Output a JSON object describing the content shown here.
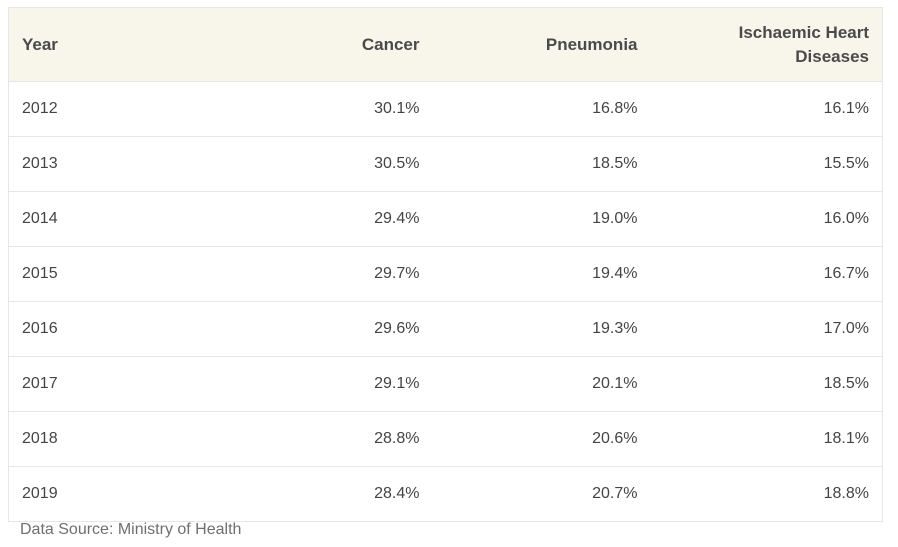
{
  "chart_data": {
    "type": "table",
    "columns": [
      "Year",
      "Cancer",
      "Pneumonia",
      "Ischaemic Heart Diseases"
    ],
    "rows": [
      [
        "2012",
        "30.1%",
        "16.8%",
        "16.1%"
      ],
      [
        "2013",
        "30.5%",
        "18.5%",
        "15.5%"
      ],
      [
        "2014",
        "29.4%",
        "19.0%",
        "16.0%"
      ],
      [
        "2015",
        "29.7%",
        "19.4%",
        "16.7%"
      ],
      [
        "2016",
        "29.6%",
        "19.3%",
        "17.0%"
      ],
      [
        "2017",
        "29.1%",
        "20.1%",
        "18.5%"
      ],
      [
        "2018",
        "28.8%",
        "20.6%",
        "18.1%"
      ],
      [
        "2019",
        "28.4%",
        "20.7%",
        "18.8%"
      ]
    ],
    "source": "Data Source: Ministry of Health"
  },
  "colors": {
    "header_background": "#f8f5eb",
    "row_divider": "#e6e6e6",
    "source_text": "#6f6f6f"
  }
}
